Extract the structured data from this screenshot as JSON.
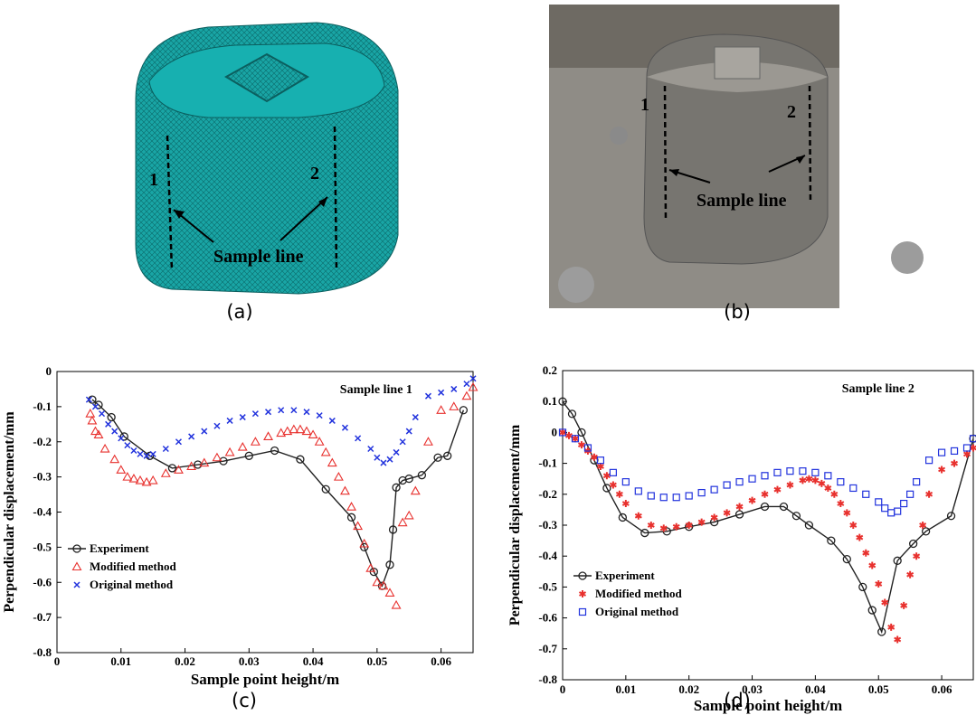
{
  "panels": [
    {
      "caption": "(a)",
      "labels": [
        "1",
        "2",
        "Sample line"
      ]
    },
    {
      "caption": "(b)",
      "labels": [
        "1",
        "2",
        "Sample line"
      ]
    },
    {
      "caption": "(c)"
    },
    {
      "caption": "(d)"
    }
  ],
  "chart_data": [
    {
      "type": "scatter",
      "annotation": "Sample line 1",
      "x_label": "Sample point height/m",
      "y_label": "Perpendicular displacement/mm",
      "xlim": [
        0,
        0.065
      ],
      "xticks": [
        0,
        0.01,
        0.02,
        0.03,
        0.04,
        0.05,
        0.06
      ],
      "ylim": [
        -0.8,
        0
      ],
      "yticks": [
        0,
        -0.1,
        -0.2,
        -0.3,
        -0.4,
        -0.5,
        -0.6,
        -0.7,
        -0.8
      ],
      "legend": "lower left",
      "series": [
        {
          "name": "Experiment",
          "color": "#222222",
          "marker": "circle",
          "line": true,
          "x": [
            0.0055,
            0.0065,
            0.0085,
            0.0105,
            0.0145,
            0.018,
            0.022,
            0.026,
            0.03,
            0.034,
            0.038,
            0.042,
            0.046,
            0.048,
            0.0495,
            0.0508,
            0.052,
            0.0525,
            0.053,
            0.054,
            0.055,
            0.057,
            0.0595,
            0.061,
            0.0635
          ],
          "values": [
            -0.08,
            -0.095,
            -0.13,
            -0.185,
            -0.24,
            -0.275,
            -0.265,
            -0.255,
            -0.24,
            -0.225,
            -0.25,
            -0.335,
            -0.415,
            -0.5,
            -0.57,
            -0.61,
            -0.55,
            -0.45,
            -0.33,
            -0.31,
            -0.305,
            -0.295,
            -0.245,
            -0.24,
            -0.11
          ]
        },
        {
          "name": "Modified method",
          "color": "#e8312e",
          "marker": "triangle",
          "line": false,
          "x": [
            0.0052,
            0.0055,
            0.006,
            0.0065,
            0.0075,
            0.009,
            0.01,
            0.011,
            0.012,
            0.013,
            0.014,
            0.015,
            0.017,
            0.019,
            0.021,
            0.023,
            0.025,
            0.027,
            0.029,
            0.031,
            0.033,
            0.035,
            0.036,
            0.037,
            0.038,
            0.039,
            0.04,
            0.041,
            0.042,
            0.043,
            0.044,
            0.045,
            0.046,
            0.047,
            0.048,
            0.049,
            0.05,
            0.051,
            0.052,
            0.053,
            0.054,
            0.055,
            0.056,
            0.058,
            0.06,
            0.062,
            0.064,
            0.065
          ],
          "values": [
            -0.12,
            -0.14,
            -0.17,
            -0.18,
            -0.22,
            -0.25,
            -0.28,
            -0.3,
            -0.305,
            -0.31,
            -0.315,
            -0.31,
            -0.29,
            -0.28,
            -0.27,
            -0.26,
            -0.245,
            -0.23,
            -0.215,
            -0.2,
            -0.185,
            -0.175,
            -0.17,
            -0.165,
            -0.165,
            -0.17,
            -0.18,
            -0.2,
            -0.23,
            -0.26,
            -0.3,
            -0.34,
            -0.385,
            -0.44,
            -0.49,
            -0.56,
            -0.6,
            -0.61,
            -0.63,
            -0.665,
            -0.43,
            -0.41,
            -0.34,
            -0.2,
            -0.11,
            -0.1,
            -0.07,
            -0.045
          ]
        },
        {
          "name": "Original method",
          "color": "#2233dd",
          "marker": "x",
          "line": false,
          "x": [
            0.005,
            0.006,
            0.007,
            0.008,
            0.009,
            0.01,
            0.011,
            0.012,
            0.013,
            0.014,
            0.015,
            0.017,
            0.019,
            0.021,
            0.023,
            0.025,
            0.027,
            0.029,
            0.031,
            0.033,
            0.035,
            0.037,
            0.039,
            0.041,
            0.043,
            0.045,
            0.047,
            0.049,
            0.05,
            0.051,
            0.052,
            0.053,
            0.054,
            0.055,
            0.056,
            0.058,
            0.06,
            0.062,
            0.064,
            0.065
          ],
          "values": [
            -0.08,
            -0.1,
            -0.12,
            -0.15,
            -0.17,
            -0.19,
            -0.21,
            -0.225,
            -0.235,
            -0.24,
            -0.235,
            -0.22,
            -0.2,
            -0.185,
            -0.17,
            -0.155,
            -0.14,
            -0.13,
            -0.12,
            -0.115,
            -0.11,
            -0.11,
            -0.115,
            -0.125,
            -0.14,
            -0.16,
            -0.19,
            -0.22,
            -0.245,
            -0.26,
            -0.25,
            -0.23,
            -0.2,
            -0.17,
            -0.13,
            -0.07,
            -0.06,
            -0.05,
            -0.035,
            -0.02
          ]
        }
      ]
    },
    {
      "type": "scatter",
      "annotation": "Sample line 2",
      "x_label": "Sample point height/m",
      "y_label": "Perpendicular displacement/mm",
      "xlim": [
        0,
        0.065
      ],
      "xticks": [
        0,
        0.01,
        0.02,
        0.03,
        0.04,
        0.05,
        0.06
      ],
      "ylim": [
        -0.8,
        0.2
      ],
      "yticks": [
        0.2,
        0.1,
        0,
        -0.1,
        -0.2,
        -0.3,
        -0.4,
        -0.5,
        -0.6,
        -0.7,
        -0.8
      ],
      "legend": "lower left",
      "series": [
        {
          "name": "Experiment",
          "color": "#222222",
          "marker": "circle",
          "line": true,
          "x": [
            0,
            0.0015,
            0.003,
            0.005,
            0.007,
            0.0095,
            0.013,
            0.0165,
            0.02,
            0.024,
            0.028,
            0.032,
            0.035,
            0.037,
            0.039,
            0.0425,
            0.045,
            0.0475,
            0.049,
            0.0505,
            0.053,
            0.0555,
            0.0575,
            0.0615,
            0.065
          ],
          "values": [
            0.1,
            0.06,
            0,
            -0.09,
            -0.18,
            -0.275,
            -0.325,
            -0.32,
            -0.305,
            -0.29,
            -0.265,
            -0.24,
            -0.24,
            -0.27,
            -0.3,
            -0.35,
            -0.41,
            -0.5,
            -0.575,
            -0.645,
            -0.415,
            -0.36,
            -0.32,
            -0.27,
            -0.02
          ]
        },
        {
          "name": "Modified method",
          "color": "#e8312e",
          "marker": "star",
          "line": false,
          "x": [
            0,
            0.001,
            0.002,
            0.003,
            0.004,
            0.005,
            0.006,
            0.007,
            0.008,
            0.009,
            0.01,
            0.012,
            0.014,
            0.016,
            0.018,
            0.02,
            0.022,
            0.024,
            0.026,
            0.028,
            0.03,
            0.032,
            0.034,
            0.036,
            0.038,
            0.039,
            0.04,
            0.041,
            0.042,
            0.043,
            0.044,
            0.045,
            0.046,
            0.047,
            0.048,
            0.049,
            0.05,
            0.051,
            0.052,
            0.053,
            0.054,
            0.055,
            0.056,
            0.057,
            0.058,
            0.06,
            0.062,
            0.064,
            0.065
          ],
          "values": [
            0,
            -0.01,
            -0.02,
            -0.04,
            -0.06,
            -0.08,
            -0.11,
            -0.14,
            -0.17,
            -0.2,
            -0.23,
            -0.27,
            -0.3,
            -0.31,
            -0.305,
            -0.3,
            -0.29,
            -0.275,
            -0.26,
            -0.24,
            -0.22,
            -0.2,
            -0.185,
            -0.17,
            -0.155,
            -0.15,
            -0.155,
            -0.165,
            -0.18,
            -0.2,
            -0.23,
            -0.26,
            -0.3,
            -0.34,
            -0.39,
            -0.43,
            -0.49,
            -0.55,
            -0.63,
            -0.67,
            -0.56,
            -0.46,
            -0.4,
            -0.3,
            -0.2,
            -0.12,
            -0.1,
            -0.07,
            -0.05
          ]
        },
        {
          "name": "Original method",
          "color": "#2233dd",
          "marker": "square",
          "line": false,
          "x": [
            0,
            0.002,
            0.004,
            0.006,
            0.008,
            0.01,
            0.012,
            0.014,
            0.016,
            0.018,
            0.02,
            0.022,
            0.024,
            0.026,
            0.028,
            0.03,
            0.032,
            0.034,
            0.036,
            0.038,
            0.04,
            0.042,
            0.044,
            0.046,
            0.048,
            0.05,
            0.051,
            0.052,
            0.053,
            0.054,
            0.055,
            0.056,
            0.058,
            0.06,
            0.062,
            0.064,
            0.065
          ],
          "values": [
            0,
            -0.02,
            -0.05,
            -0.09,
            -0.13,
            -0.16,
            -0.19,
            -0.205,
            -0.21,
            -0.21,
            -0.205,
            -0.195,
            -0.185,
            -0.17,
            -0.16,
            -0.15,
            -0.14,
            -0.13,
            -0.125,
            -0.125,
            -0.13,
            -0.14,
            -0.16,
            -0.18,
            -0.2,
            -0.225,
            -0.245,
            -0.26,
            -0.255,
            -0.23,
            -0.2,
            -0.16,
            -0.09,
            -0.065,
            -0.06,
            -0.05,
            -0.02
          ]
        }
      ]
    }
  ]
}
